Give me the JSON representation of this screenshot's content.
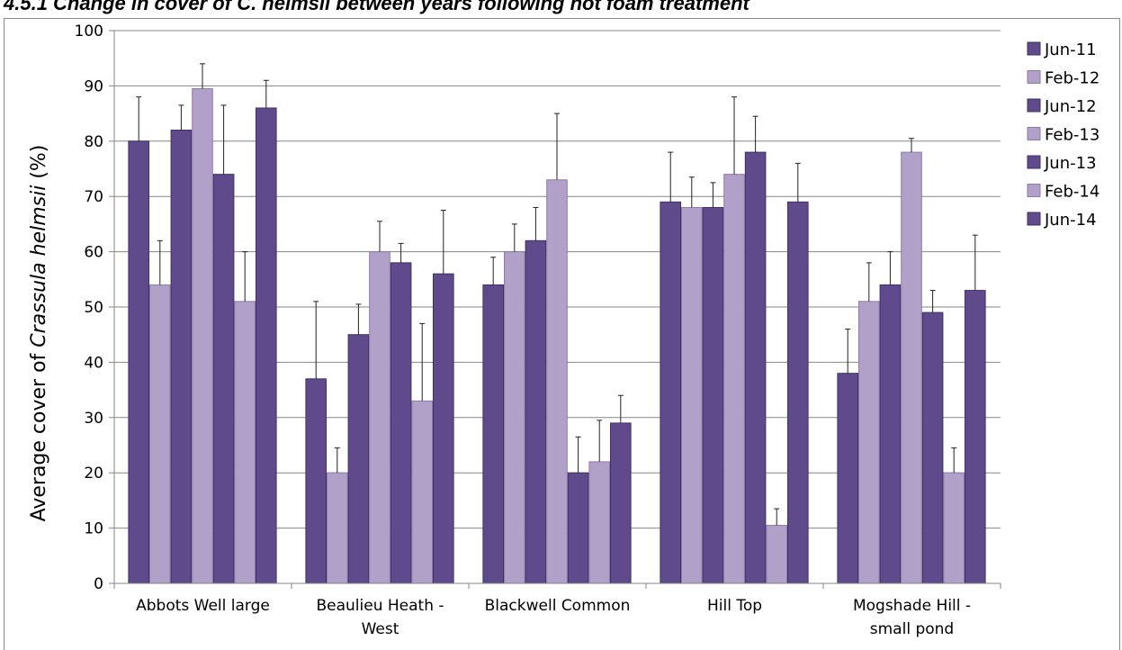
{
  "heading": "4.5.1    Change in cover of C. helmsii between years following hot foam treatment",
  "colors": {
    "dark": "#5f4b8b",
    "light": "#b1a0c8",
    "dark_edge": "#3f2f66",
    "light_edge": "#8e7bab"
  },
  "chart_data": {
    "type": "bar",
    "ylabel_prefix": "Average cover of ",
    "ylabel_species": "Crassula helmsii",
    "ylabel_suffix": " (%)",
    "ylim": [
      0,
      100
    ],
    "yticks": [
      "0",
      "10",
      "20",
      "30",
      "40",
      "50",
      "60",
      "70",
      "80",
      "90",
      "100"
    ],
    "grid": true,
    "legend_position": "right",
    "categories": [
      [
        "Abbots Well large"
      ],
      [
        "Beaulieu Heath -",
        "West"
      ],
      [
        "Blackwell Common"
      ],
      [
        "Hill Top"
      ],
      [
        "Mogshade Hill -",
        "small pond"
      ]
    ],
    "series": [
      {
        "name": "Jun-11",
        "values": [
          80,
          37,
          54,
          69,
          38
        ],
        "errors": [
          8,
          14,
          5,
          9,
          8
        ]
      },
      {
        "name": "Feb-12",
        "values": [
          54,
          20,
          60,
          68,
          51
        ],
        "errors": [
          8,
          4.5,
          5,
          5.5,
          7
        ]
      },
      {
        "name": "Jun-12",
        "values": [
          82,
          45,
          62,
          68,
          54
        ],
        "errors": [
          4.5,
          5.5,
          6,
          4.5,
          6
        ]
      },
      {
        "name": "Feb-13",
        "values": [
          89.5,
          60,
          73,
          74,
          78
        ],
        "errors": [
          4.5,
          5.5,
          12,
          14,
          2.5
        ]
      },
      {
        "name": "Jun-13",
        "values": [
          74,
          58,
          20,
          78,
          49
        ],
        "errors": [
          12.5,
          3.5,
          6.5,
          6.5,
          4
        ]
      },
      {
        "name": "Feb-14",
        "values": [
          51,
          33,
          22,
          10.5,
          20
        ],
        "errors": [
          9,
          14,
          7.5,
          3,
          4.5
        ]
      },
      {
        "name": "Jun-14",
        "values": [
          86,
          56,
          29,
          69,
          53
        ],
        "errors": [
          5,
          11.5,
          5,
          7,
          10
        ]
      }
    ]
  }
}
